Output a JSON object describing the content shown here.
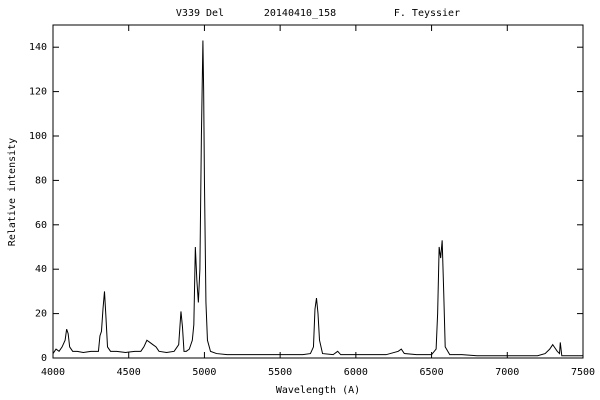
{
  "chart_data": {
    "type": "line",
    "title": "V339 Del",
    "observation": "20140410_158",
    "observer": "F. Teyssier",
    "x_label": "Wavelength (A)",
    "y_label": "Relative intensity",
    "color": "#000000",
    "xlim": [
      4000,
      7500
    ],
    "xticks": [
      4000,
      4500,
      5000,
      5500,
      6000,
      6500,
      7000,
      7500
    ],
    "ylim": [
      0,
      150
    ],
    "yticks": [
      0,
      20,
      40,
      60,
      80,
      100,
      120,
      140
    ],
    "grid": false,
    "x": [
      4000,
      4020,
      4040,
      4060,
      4080,
      4090,
      4100,
      4110,
      4130,
      4160,
      4200,
      4250,
      4300,
      4310,
      4320,
      4330,
      4340,
      4350,
      4360,
      4380,
      4420,
      4480,
      4540,
      4580,
      4600,
      4620,
      4640,
      4660,
      4680,
      4700,
      4750,
      4800,
      4830,
      4845,
      4855,
      4865,
      4880,
      4900,
      4920,
      4930,
      4940,
      4950,
      4960,
      4970,
      4980,
      4990,
      4995,
      5000,
      5010,
      5020,
      5040,
      5080,
      5150,
      5200,
      5300,
      5400,
      5500,
      5600,
      5650,
      5700,
      5720,
      5730,
      5740,
      5750,
      5760,
      5780,
      5850,
      5880,
      5900,
      6000,
      6100,
      6200,
      6280,
      6300,
      6320,
      6400,
      6500,
      6530,
      6540,
      6550,
      6560,
      6570,
      6580,
      6590,
      6620,
      6700,
      6800,
      6900,
      7000,
      7100,
      7200,
      7250,
      7280,
      7300,
      7310,
      7330,
      7345,
      7350,
      7360,
      7400,
      7500
    ],
    "values": [
      2,
      4,
      3,
      5,
      8,
      13,
      11,
      5,
      3,
      3,
      2.5,
      3,
      3,
      10,
      12,
      22,
      30,
      18,
      5,
      3,
      3,
      2.5,
      3,
      3,
      5,
      8,
      7,
      6,
      5,
      3,
      2.5,
      3,
      6,
      21,
      14,
      3,
      3,
      4,
      8,
      15,
      50,
      35,
      25,
      40,
      100,
      143,
      120,
      80,
      25,
      8,
      3,
      2,
      1.5,
      1.5,
      1.5,
      1.5,
      1.5,
      1.5,
      1.5,
      2,
      5,
      22,
      27,
      20,
      8,
      2,
      1.5,
      3,
      1.5,
      1.5,
      1.5,
      1.5,
      3,
      4,
      2,
      1.5,
      1.5,
      4,
      20,
      50,
      45,
      53,
      30,
      5,
      1.5,
      1.5,
      1,
      1,
      1,
      1,
      1,
      2,
      4,
      6,
      5,
      3,
      2,
      7,
      1,
      1,
      1
    ]
  }
}
